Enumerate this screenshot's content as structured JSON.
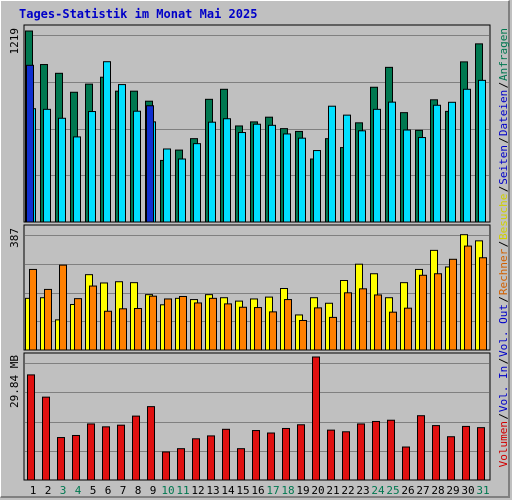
{
  "title": "Tages-Statistik im Monat Mai 2025",
  "days": [
    "1",
    "2",
    "3",
    "4",
    "5",
    "6",
    "7",
    "8",
    "9",
    "10",
    "11",
    "12",
    "13",
    "14",
    "15",
    "16",
    "17",
    "18",
    "19",
    "20",
    "21",
    "22",
    "23",
    "24",
    "25",
    "26",
    "27",
    "28",
    "29",
    "30",
    "31"
  ],
  "weekend_days": [
    "3",
    "4",
    "10",
    "11",
    "17",
    "18",
    "24",
    "25",
    "31"
  ],
  "colors": {
    "anfragen": "#007850",
    "dateien": "#00e0ff",
    "seiten": "#1030d0",
    "besuche": "#ffff00",
    "rechner": "#ff8000",
    "volumen": "#e01010",
    "grid": "#808080",
    "plot_bg": "#c0c0c0",
    "title": "#0000c8",
    "label_green": "#007850",
    "label_blue": "#0000c8",
    "label_yellow": "#d0d000",
    "label_orange": "#d06000",
    "label_red": "#d00000"
  },
  "chart_data": [
    {
      "type": "bar",
      "panel": "top",
      "ymax_label": "1219",
      "ylim": [
        0,
        1219
      ],
      "series": [
        {
          "name": "Anfragen",
          "values": [
            1219,
            1005,
            949,
            828,
            880,
            924,
            835,
            835,
            771,
            393,
            459,
            532,
            783,
            847,
            613,
            639,
            669,
            596,
            578,
            402,
            532,
            475,
            633,
            860,
            987,
            698,
            585,
            780,
            706,
            1022,
            1137
          ]
        },
        {
          "name": "Dateien",
          "values": [
            723,
            719,
            662,
            543,
            705,
            1023,
            877,
            707,
            639,
            466,
            402,
            500,
            637,
            659,
            571,
            624,
            617,
            562,
            535,
            456,
            739,
            682,
            582,
            719,
            765,
            587,
            539,
            745,
            764,
            847,
            904
          ]
        },
        {
          "name": "Seiten",
          "values": [
            1000,
            0,
            0,
            0,
            0,
            0,
            0,
            0,
            742,
            0,
            0,
            0,
            0,
            0,
            0,
            0,
            0,
            0,
            0,
            0,
            0,
            0,
            0,
            0,
            0,
            0,
            0,
            0,
            0,
            0,
            0
          ]
        }
      ],
      "right_labels": [
        "Anfragen",
        "Dateien",
        "Seiten"
      ]
    },
    {
      "type": "bar",
      "panel": "middle",
      "ymax_label": "387",
      "ylim": [
        0,
        387
      ],
      "series": [
        {
          "name": "Besuche",
          "values": [
            168,
            170,
            98,
            148,
            245,
            218,
            222,
            219,
            180,
            147,
            168,
            164,
            180,
            170,
            159,
            166,
            172,
            200,
            114,
            170,
            152,
            226,
            279,
            248,
            170,
            219,
            262,
            324,
            270,
            375,
            355
          ]
        },
        {
          "name": "Rechner",
          "values": [
            262,
            197,
            276,
            167,
            208,
            126,
            134,
            135,
            175,
            166,
            174,
            153,
            168,
            150,
            139,
            138,
            124,
            164,
            96,
            137,
            106,
            186,
            199,
            179,
            123,
            136,
            243,
            248,
            295,
            338,
            300
          ]
        }
      ],
      "right_labels": [
        "Besuche",
        "Rechner",
        "Vol. Out"
      ]
    },
    {
      "type": "bar",
      "panel": "bottom",
      "ymax_label": "29.84 MB",
      "ylim": [
        0,
        29.84
      ],
      "series": [
        {
          "name": "Volumen",
          "values": [
            25.5,
            20.1,
            10.3,
            10.8,
            13.6,
            12.9,
            13.3,
            15.5,
            17.8,
            6.8,
            7.6,
            10.0,
            10.7,
            12.3,
            7.6,
            12.0,
            11.4,
            12.5,
            13.4,
            29.84,
            12.1,
            11.7,
            13.6,
            14.2,
            14.5,
            8.0,
            15.6,
            13.2,
            10.5,
            13.0,
            12.7
          ]
        }
      ],
      "right_labels": [
        "Vol. In",
        "Volumen"
      ]
    }
  ]
}
